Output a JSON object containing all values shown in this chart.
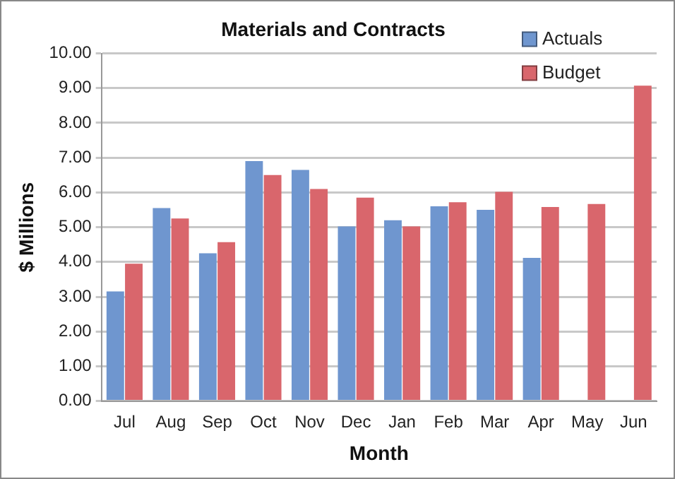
{
  "chart_data": {
    "type": "bar",
    "title": "Materials and Contracts",
    "xlabel": "Month",
    "ylabel": "$ Millions",
    "categories": [
      "Jul",
      "Aug",
      "Sep",
      "Oct",
      "Nov",
      "Dec",
      "Jan",
      "Feb",
      "Mar",
      "Apr",
      "May",
      "Jun"
    ],
    "series": [
      {
        "name": "Actuals",
        "color": "#6f96cf",
        "values": [
          3.15,
          5.55,
          4.25,
          6.9,
          6.65,
          5.02,
          5.2,
          5.6,
          5.5,
          4.12,
          null,
          null
        ]
      },
      {
        "name": "Budget",
        "color": "#d9666c",
        "values": [
          3.95,
          5.25,
          4.57,
          6.5,
          6.1,
          5.85,
          5.02,
          5.72,
          6.02,
          5.58,
          5.67,
          9.07
        ]
      }
    ],
    "ylim": [
      0,
      10
    ],
    "yticks": [
      {
        "value": 0,
        "label": "0.00"
      },
      {
        "value": 1,
        "label": "1.00"
      },
      {
        "value": 2,
        "label": "2.00"
      },
      {
        "value": 3,
        "label": "3.00"
      },
      {
        "value": 4,
        "label": "4.00"
      },
      {
        "value": 5,
        "label": "5.00"
      },
      {
        "value": 6,
        "label": "6.00"
      },
      {
        "value": 7,
        "label": "7.00"
      },
      {
        "value": 8,
        "label": "8.00"
      },
      {
        "value": 9,
        "label": "9.00"
      },
      {
        "value": 10,
        "label": "10.00"
      }
    ],
    "grid": "y",
    "legend": "top right"
  }
}
